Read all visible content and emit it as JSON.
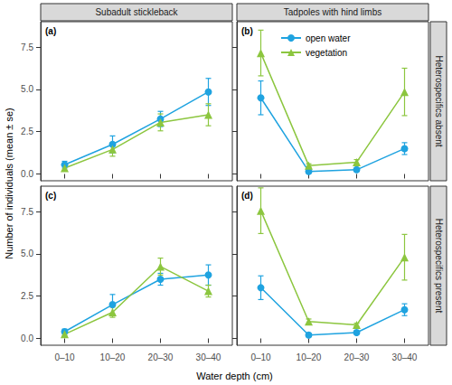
{
  "y_label": "Number of individuals (mean ± se)",
  "x_label": "Water depth (cm)",
  "columns": [
    "Subadult stickleback",
    "Tadpoles with hind limbs"
  ],
  "rows": [
    "Heterospecifics absent",
    "Heterospecifics present"
  ],
  "chart_data": [
    {
      "type": "line",
      "tag": "(a)",
      "categories": [
        "0–10",
        "10–20",
        "20–30",
        "30–40"
      ],
      "series": [
        {
          "name": "open water",
          "color": "#1fa3e0",
          "marker": "circle",
          "line_style": "solid",
          "values": [
            0.55,
            1.75,
            3.25,
            4.85
          ],
          "se": [
            0.2,
            0.5,
            0.45,
            0.8
          ]
        },
        {
          "name": "vegetation",
          "color": "#8cc63f",
          "marker": "triangle",
          "line_style": "solid",
          "values": [
            0.35,
            1.45,
            3.05,
            3.5
          ],
          "se": [
            0.15,
            0.4,
            0.5,
            0.65
          ]
        }
      ],
      "ylim": [
        -0.4,
        9
      ],
      "yticks": [
        {
          "value": 0,
          "label": "0.0"
        },
        {
          "value": 2.5,
          "label": "2.5"
        },
        {
          "value": 5,
          "label": "5.0"
        },
        {
          "value": 7.5,
          "label": "7.5"
        }
      ],
      "grid": false,
      "tick_labels": "y"
    },
    {
      "type": "line",
      "tag": "(b)",
      "categories": [
        "0–10",
        "10–20",
        "20–30",
        "30–40"
      ],
      "series": [
        {
          "name": "open water",
          "color": "#1fa3e0",
          "marker": "circle",
          "line_style": "solid",
          "values": [
            4.5,
            0.15,
            0.25,
            1.5
          ],
          "se": [
            1.0,
            0.1,
            0.1,
            0.35
          ]
        },
        {
          "name": "vegetation",
          "color": "#8cc63f",
          "marker": "triangle",
          "line_style": "solid",
          "values": [
            7.15,
            0.5,
            0.7,
            4.85
          ],
          "se": [
            1.35,
            0.1,
            0.15,
            1.4
          ]
        }
      ],
      "ylim": [
        -0.4,
        9
      ],
      "yticks": [
        {
          "value": 0,
          "label": "0.0"
        },
        {
          "value": 2.5,
          "label": "2.5"
        },
        {
          "value": 5,
          "label": "5.0"
        },
        {
          "value": 7.5,
          "label": "7.5"
        }
      ],
      "grid": false,
      "tick_labels": false,
      "legend": "top"
    },
    {
      "type": "line",
      "tag": "(c)",
      "categories": [
        "0–10",
        "10–20",
        "20–30",
        "30–40"
      ],
      "series": [
        {
          "name": "open water",
          "color": "#1fa3e0",
          "marker": "circle",
          "line_style": "solid",
          "values": [
            0.4,
            2.0,
            3.5,
            3.75
          ],
          "se": [
            0.15,
            0.6,
            0.35,
            0.6
          ]
        },
        {
          "name": "vegetation",
          "color": "#8cc63f",
          "marker": "triangle",
          "line_style": "solid",
          "values": [
            0.25,
            1.55,
            4.25,
            2.8
          ],
          "se": [
            0.1,
            0.3,
            0.5,
            0.35
          ]
        }
      ],
      "ylim": [
        -0.4,
        9
      ],
      "yticks": [
        {
          "value": 0,
          "label": "0.0"
        },
        {
          "value": 2.5,
          "label": "2.5"
        },
        {
          "value": 5,
          "label": "5.0"
        },
        {
          "value": 7.5,
          "label": "7.5"
        }
      ],
      "grid": false
    },
    {
      "type": "line",
      "tag": "(d)",
      "categories": [
        "0–10",
        "10–20",
        "20–30",
        "30–40"
      ],
      "series": [
        {
          "name": "open water",
          "color": "#1fa3e0",
          "marker": "circle",
          "line_style": "solid",
          "values": [
            3.0,
            0.2,
            0.35,
            1.7
          ],
          "se": [
            0.7,
            0.1,
            0.1,
            0.35
          ]
        },
        {
          "name": "vegetation",
          "color": "#8cc63f",
          "marker": "triangle",
          "line_style": "solid",
          "values": [
            7.55,
            1.0,
            0.8,
            4.8
          ],
          "se": [
            1.35,
            0.15,
            0.1,
            1.35
          ]
        }
      ],
      "ylim": [
        -0.4,
        9
      ],
      "yticks": [
        {
          "value": 0,
          "label": "0.0"
        },
        {
          "value": 2.5,
          "label": "2.5"
        },
        {
          "value": 5,
          "label": "5.0"
        },
        {
          "value": 7.5,
          "label": "7.5"
        }
      ],
      "grid": false,
      "tick_labels": "x"
    }
  ]
}
